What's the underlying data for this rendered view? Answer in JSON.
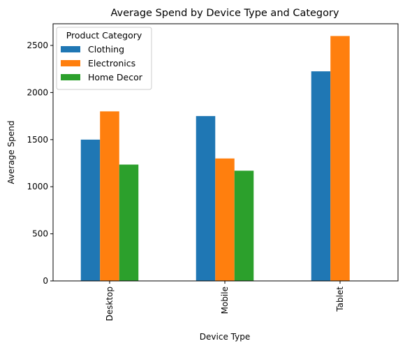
{
  "chart_data": {
    "type": "bar",
    "title": "Average Spend by Device Type and Category",
    "xlabel": "Device Type",
    "ylabel": "Average Spend",
    "categories": [
      "Desktop",
      "Mobile",
      "Tablet"
    ],
    "series": [
      {
        "name": "Clothing",
        "color": "#1f77b4",
        "values": [
          1500,
          1750,
          2225
        ]
      },
      {
        "name": "Electronics",
        "color": "#ff7f0e",
        "values": [
          1800,
          1300,
          2600
        ]
      },
      {
        "name": "Home Decor",
        "color": "#2ca02c",
        "values": [
          1235,
          1170,
          null
        ]
      }
    ],
    "ylim": [
      0,
      2730
    ],
    "yticks": [
      0,
      500,
      1000,
      1500,
      2000,
      2500
    ],
    "legend": {
      "title": "Product Category",
      "placement": "top-left"
    },
    "grid": false
  }
}
